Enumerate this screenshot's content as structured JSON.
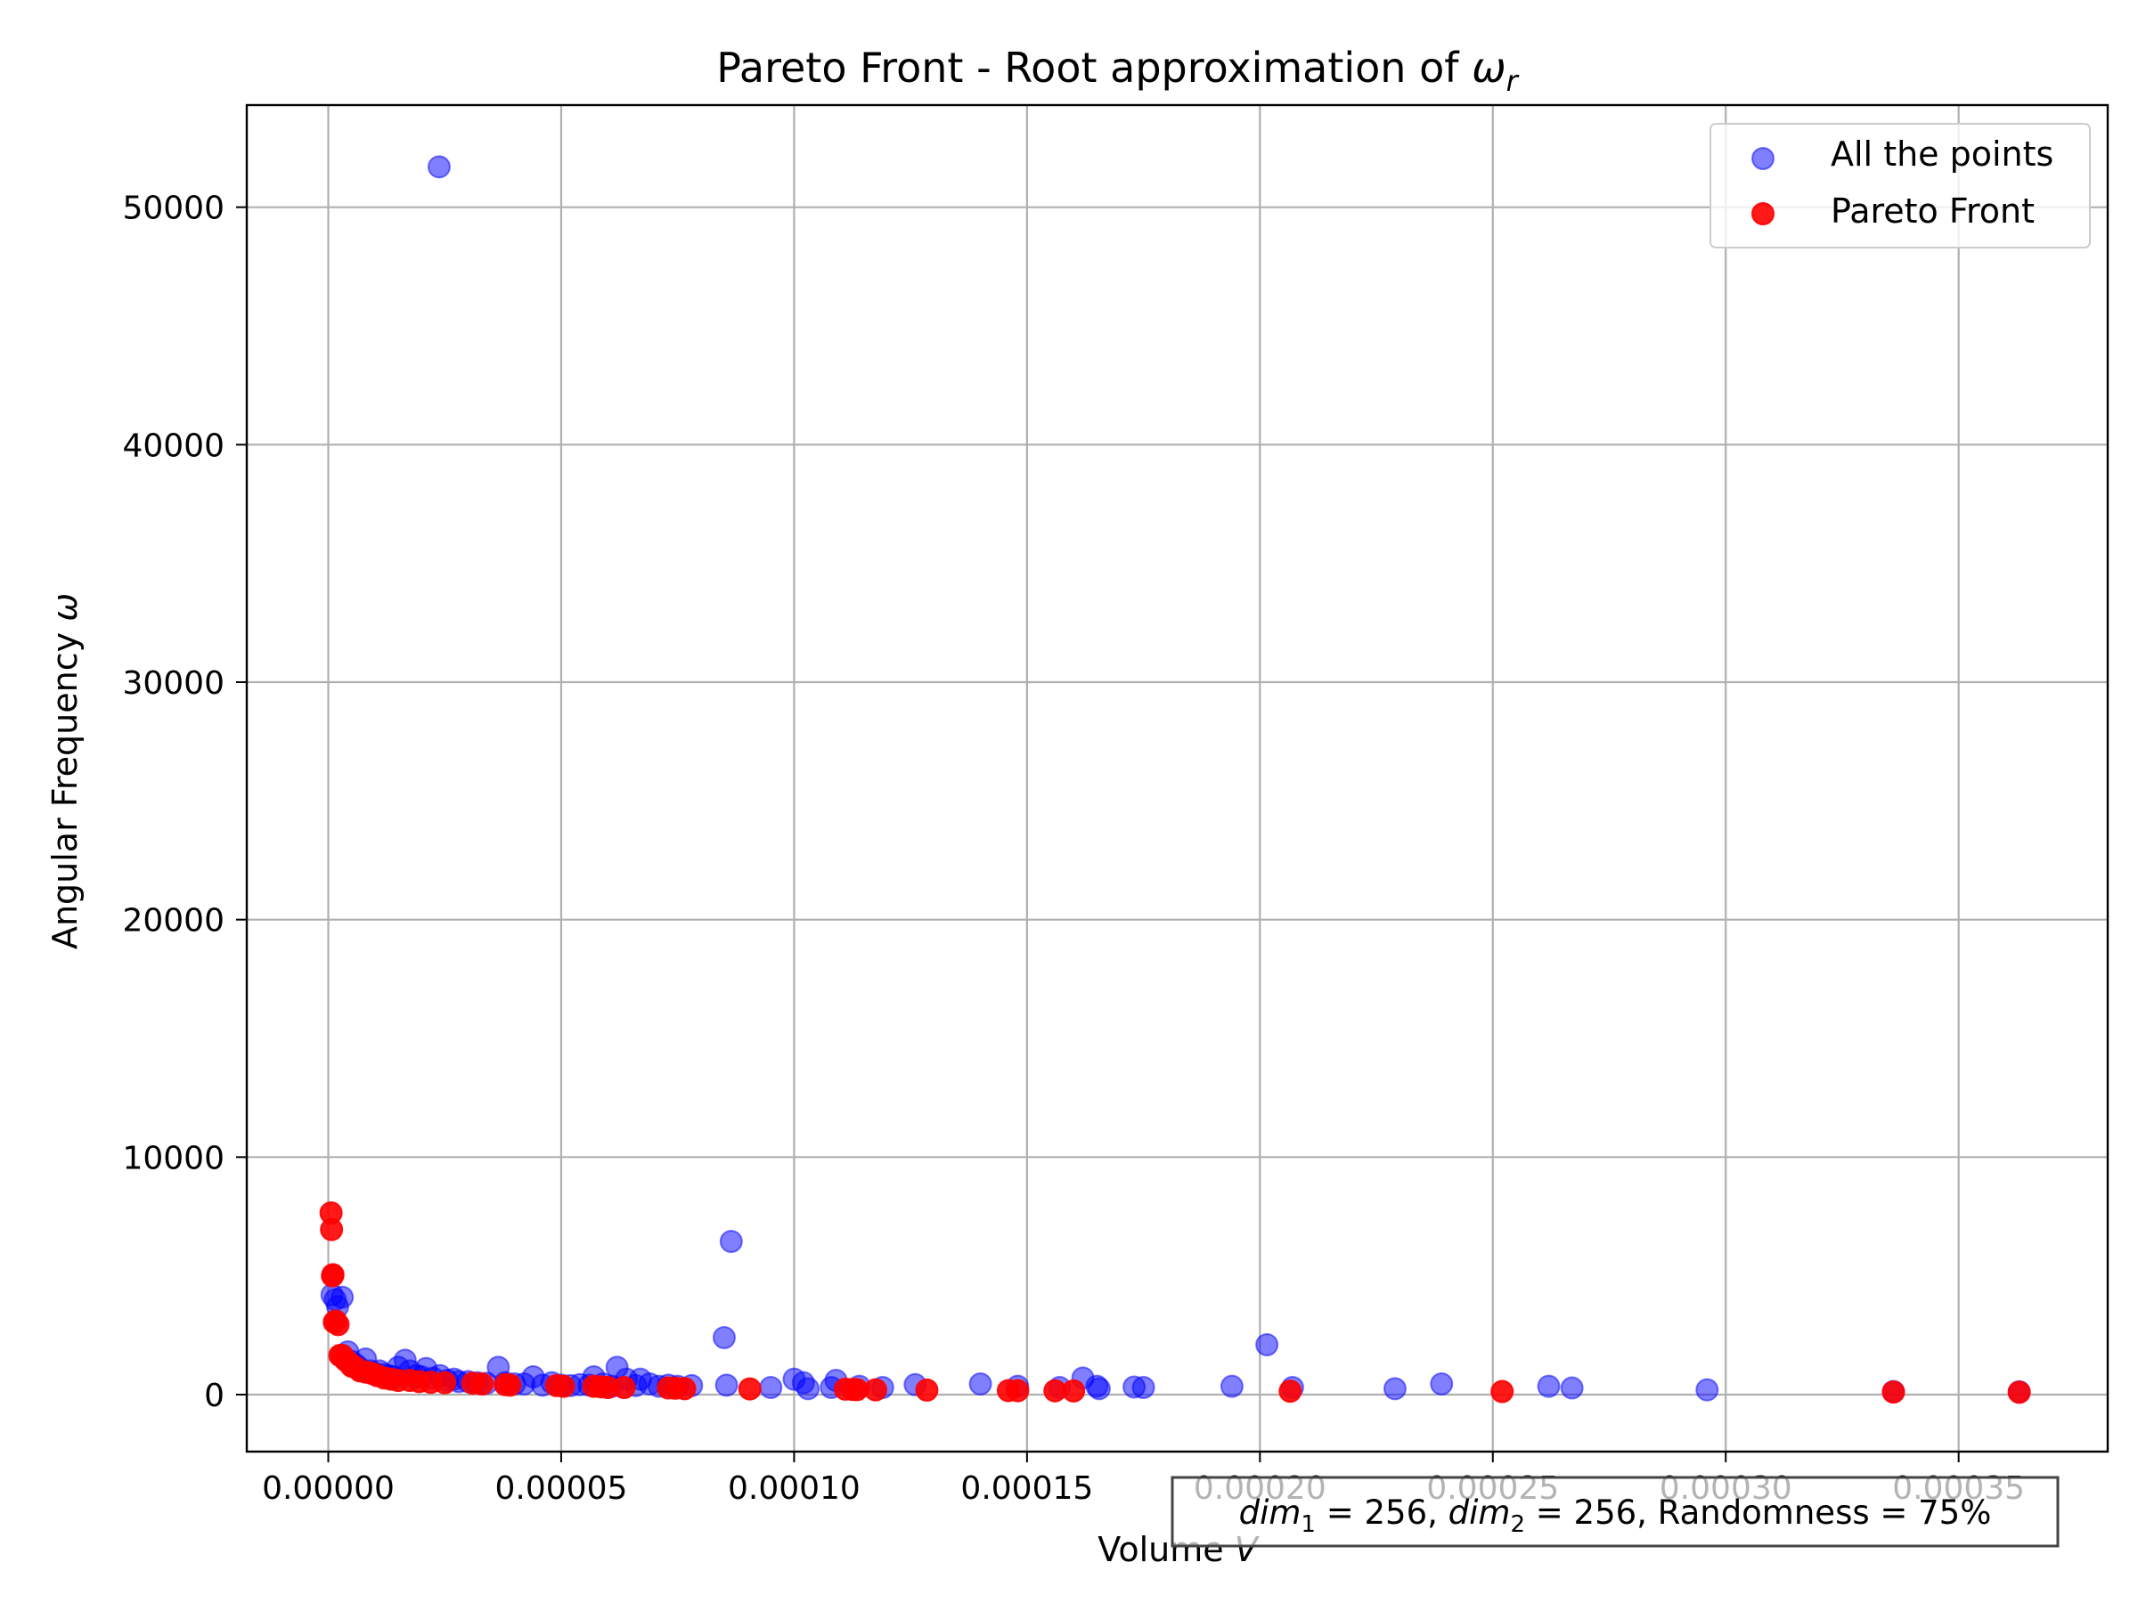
{
  "chart_data": {
    "type": "scatter",
    "title": "Pareto Front - Root approximation of",
    "title_symbol": "ω",
    "title_symbol_sub": "r",
    "xlabel": "Volume",
    "xlabel_symbol": "V",
    "ylabel": "Angular Frequency",
    "ylabel_symbol": "ω",
    "xlim": [
      -1.75e-05,
      0.000382
    ],
    "ylim": [
      -2400,
      54300
    ],
    "xticks": [
      0.0,
      5e-05,
      0.0001,
      0.00015,
      0.0002,
      0.00025,
      0.0003,
      0.00035
    ],
    "xtick_labels": [
      "0.00000",
      "0.00005",
      "0.00010",
      "0.00015",
      "0.00020",
      "0.00025",
      "0.00030",
      "0.00035"
    ],
    "yticks": [
      0,
      10000,
      20000,
      30000,
      40000,
      50000
    ],
    "ytick_labels": [
      "0",
      "10000",
      "20000",
      "30000",
      "40000",
      "50000"
    ],
    "grid": true,
    "legend_position": "top-right",
    "annotation": {
      "var1": "dim",
      "sub1": "1",
      "eq1": " = 256, ",
      "var2": "dim",
      "sub2": "2",
      "eq2": " = 256, Randomness = 75%"
    },
    "series": [
      {
        "name": "All the points",
        "color": "#0000ff",
        "alpha": 0.5,
        "x": [
          2.38e-05,
          8.65e-05,
          8.5e-05,
          0.0002015,
          8e-07,
          1.5e-06,
          2e-06,
          3e-06,
          4.2e-06,
          5e-06,
          6e-06,
          6.8e-06,
          8e-06,
          9e-06,
          1e-05,
          1.1e-05,
          1.2e-05,
          1.3e-05,
          1.4e-05,
          1.5e-05,
          1.65e-05,
          1.75e-05,
          1.9e-05,
          2e-05,
          2.1e-05,
          2.25e-05,
          2.4e-05,
          2.55e-05,
          2.7e-05,
          2.8e-05,
          3e-05,
          3.2e-05,
          3.4e-05,
          3.65e-05,
          3.8e-05,
          4e-05,
          4.2e-05,
          4.4e-05,
          4.6e-05,
          4.8e-05,
          5e-05,
          5.2e-05,
          5.4e-05,
          5.6e-05,
          5.7e-05,
          5.9e-05,
          6.1e-05,
          6.2e-05,
          6.4e-05,
          6.6e-05,
          6.7e-05,
          6.9e-05,
          7.1e-05,
          7.3e-05,
          7.5e-05,
          7.8e-05,
          8.55e-05,
          9.5e-05,
          0.0001,
          0.000102,
          0.000103,
          0.000108,
          0.000109,
          0.000114,
          0.000119,
          0.000126,
          0.00014,
          0.000148,
          0.000157,
          0.000162,
          0.000165,
          0.0001655,
          0.000173,
          0.000175,
          0.000194,
          0.000207,
          0.000229,
          0.000239,
          0.000262,
          0.000267,
          0.000296,
          0.000336,
          0.000363
        ],
        "y": [
          51700,
          6450,
          2400,
          2100,
          4200,
          4000,
          3700,
          4100,
          1800,
          1400,
          1250,
          1100,
          1500,
          1000,
          900,
          1000,
          850,
          800,
          750,
          1150,
          1450,
          1000,
          800,
          750,
          1100,
          700,
          800,
          600,
          650,
          550,
          550,
          500,
          480,
          1150,
          500,
          450,
          450,
          750,
          400,
          500,
          400,
          380,
          420,
          400,
          750,
          450,
          350,
          1150,
          650,
          380,
          650,
          450,
          350,
          400,
          350,
          380,
          400,
          300,
          650,
          500,
          250,
          300,
          600,
          350,
          300,
          420,
          450,
          350,
          300,
          700,
          350,
          250,
          320,
          300,
          350,
          300,
          250,
          450,
          350,
          280,
          200,
          130,
          120
        ]
      },
      {
        "name": "Pareto Front",
        "color": "#ff0000",
        "alpha": 0.9,
        "x": [
          6e-07,
          7e-07,
          9e-07,
          1e-06,
          1.3e-06,
          1.6e-06,
          2.1e-06,
          2.5e-06,
          3e-06,
          3.7e-06,
          4.4e-06,
          5e-06,
          5.8e-06,
          6.8e-06,
          8e-06,
          9.3e-06,
          1.05e-05,
          1.2e-05,
          1.35e-05,
          1.5e-05,
          1.75e-05,
          1.95e-05,
          2.2e-05,
          2.5e-05,
          3.1e-05,
          3.3e-05,
          3.8e-05,
          3.9e-05,
          4.9e-05,
          5.05e-05,
          5.7e-05,
          5.85e-05,
          6e-05,
          6.35e-05,
          7.3e-05,
          7.45e-05,
          7.65e-05,
          9.05e-05,
          0.000111,
          0.0001125,
          0.0001135,
          0.0001175,
          0.0001285,
          0.000146,
          0.000148,
          0.000156,
          0.00016,
          0.0002065,
          0.000252,
          0.000336,
          0.000363
        ],
        "y": [
          7650,
          6950,
          5000,
          5050,
          3050,
          3100,
          2950,
          1650,
          1650,
          1450,
          1350,
          1200,
          1150,
          1000,
          950,
          900,
          800,
          700,
          650,
          600,
          600,
          550,
          520,
          500,
          480,
          450,
          420,
          400,
          380,
          350,
          350,
          330,
          300,
          300,
          280,
          270,
          250,
          240,
          230,
          220,
          210,
          200,
          190,
          170,
          165,
          160,
          155,
          145,
          130,
          110,
          100
        ]
      }
    ]
  }
}
